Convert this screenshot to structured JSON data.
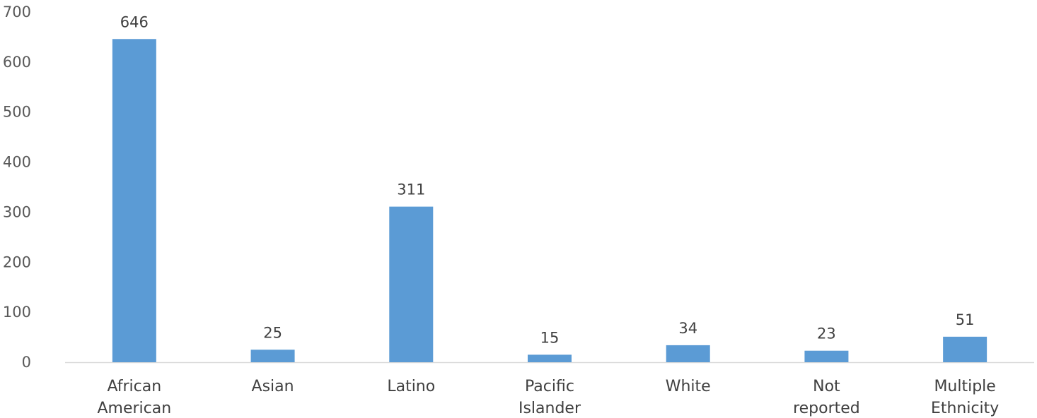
{
  "chart_data": {
    "type": "bar",
    "categories": [
      [
        "African",
        "American"
      ],
      [
        "Asian"
      ],
      [
        "Latino"
      ],
      [
        "Pacific",
        "Islander"
      ],
      [
        "White"
      ],
      [
        "Not",
        "reported"
      ],
      [
        "Multiple",
        "Ethnicity"
      ]
    ],
    "values": [
      646,
      25,
      311,
      15,
      34,
      23,
      51
    ],
    "ylim": [
      0,
      700
    ],
    "yticks": [
      "0",
      "100",
      "200",
      "300",
      "400",
      "500",
      "600",
      "700"
    ],
    "data_labels": [
      "646",
      "25",
      "311",
      "15",
      "34",
      "23",
      "51"
    ],
    "grid": false,
    "bar_color": "#5b9bd5",
    "axis_color": "#d9d9d9",
    "title": "",
    "xlabel": "",
    "ylabel": ""
  }
}
